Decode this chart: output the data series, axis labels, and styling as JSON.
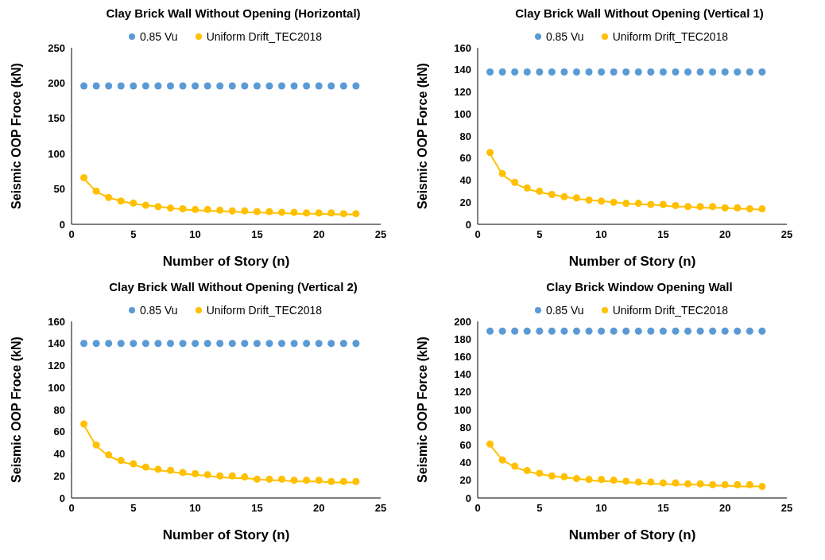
{
  "chart_data": [
    {
      "type": "scatter",
      "title": "Clay Brick Wall Without Opening (Horizontal)",
      "xlabel": "Number of Story (n)",
      "ylabel": "Seismic OOP Froce (kN)",
      "xlim": [
        0,
        25
      ],
      "xticks": [
        0,
        5,
        10,
        15,
        20,
        25
      ],
      "ylim": [
        0,
        250
      ],
      "yticks": [
        0,
        50,
        100,
        150,
        200,
        250
      ],
      "grid": false,
      "legend": "top",
      "marker": "circle",
      "x": [
        1,
        2,
        3,
        4,
        5,
        6,
        7,
        8,
        9,
        10,
        11,
        12,
        13,
        14,
        15,
        16,
        17,
        18,
        19,
        20,
        21,
        22,
        23
      ],
      "series": [
        {
          "name": "0.85 Vu",
          "color": "#5b9bd5",
          "values": [
            196,
            196,
            196,
            196,
            196,
            196,
            196,
            196,
            196,
            196,
            196,
            196,
            196,
            196,
            196,
            196,
            196,
            196,
            196,
            196,
            196,
            196,
            196
          ]
        },
        {
          "name": "Uniform Drift_TEC2018",
          "color": "#ffc000",
          "values": [
            66,
            47,
            38,
            33,
            30,
            27,
            25,
            23,
            22,
            21,
            21,
            20,
            19,
            19,
            18,
            18,
            17,
            17,
            16,
            16,
            16,
            15,
            15
          ]
        },
        {
          "type": "line",
          "marker": "none",
          "color": "#ffc000",
          "values": [
            65,
            46,
            38,
            33,
            29,
            27,
            25,
            23,
            21,
            20,
            19,
            19,
            18,
            17,
            17,
            16,
            16,
            15,
            15,
            15,
            14,
            14,
            14
          ]
        }
      ]
    },
    {
      "type": "scatter",
      "title": "Clay Brick Wall Without Opening (Vertical 1)",
      "xlabel": "Number of Story (n)",
      "ylabel": "Seismic OOP Force (kN)",
      "xlim": [
        0,
        25
      ],
      "xticks": [
        0,
        5,
        10,
        15,
        20,
        25
      ],
      "ylim": [
        0,
        160
      ],
      "yticks": [
        0,
        20,
        40,
        60,
        80,
        100,
        120,
        140,
        160
      ],
      "grid": false,
      "legend": "top",
      "marker": "circle",
      "x": [
        1,
        2,
        3,
        4,
        5,
        6,
        7,
        8,
        9,
        10,
        11,
        12,
        13,
        14,
        15,
        16,
        17,
        18,
        19,
        20,
        21,
        22,
        23
      ],
      "series": [
        {
          "name": "0.85 Vu",
          "color": "#5b9bd5",
          "values": [
            138,
            138,
            138,
            138,
            138,
            138,
            138,
            138,
            138,
            138,
            138,
            138,
            138,
            138,
            138,
            138,
            138,
            138,
            138,
            138,
            138,
            138,
            138
          ]
        },
        {
          "name": "Uniform Drift_TEC2018",
          "color": "#ffc000",
          "values": [
            65,
            46,
            38,
            33,
            30,
            27,
            25,
            24,
            22,
            21,
            20,
            19,
            19,
            18,
            18,
            17,
            16,
            16,
            16,
            15,
            15,
            14,
            14
          ]
        },
        {
          "type": "line",
          "marker": "none",
          "color": "#ffc000",
          "values": [
            64,
            45,
            37,
            32,
            29,
            27,
            25,
            23,
            22,
            21,
            20,
            19,
            18,
            18,
            17,
            16,
            16,
            15,
            15,
            15,
            14,
            14,
            13
          ]
        }
      ]
    },
    {
      "type": "scatter",
      "title": "Clay Brick Wall Without Opening (Vertical 2)",
      "xlabel": "Number of Story (n)",
      "ylabel": "Seismic OOP Froce (kN)",
      "xlim": [
        0,
        25
      ],
      "xticks": [
        0,
        5,
        10,
        15,
        20,
        25
      ],
      "ylim": [
        0,
        160
      ],
      "yticks": [
        0,
        20,
        40,
        60,
        80,
        100,
        120,
        140,
        160
      ],
      "grid": false,
      "legend": "top",
      "marker": "circle",
      "x": [
        1,
        2,
        3,
        4,
        5,
        6,
        7,
        8,
        9,
        10,
        11,
        12,
        13,
        14,
        15,
        16,
        17,
        18,
        19,
        20,
        21,
        22,
        23
      ],
      "series": [
        {
          "name": "0.85 Vu",
          "color": "#5b9bd5",
          "values": [
            140,
            140,
            140,
            140,
            140,
            140,
            140,
            140,
            140,
            140,
            140,
            140,
            140,
            140,
            140,
            140,
            140,
            140,
            140,
            140,
            140,
            140,
            140
          ]
        },
        {
          "name": "Uniform Drift_TEC2018",
          "color": "#ffc000",
          "values": [
            67,
            48,
            39,
            34,
            31,
            28,
            26,
            25,
            23,
            22,
            21,
            20,
            20,
            19,
            17,
            17,
            17,
            16,
            16,
            16,
            15,
            15,
            15
          ]
        },
        {
          "type": "line",
          "marker": "none",
          "color": "#ffc000",
          "values": [
            66,
            47,
            38,
            33,
            30,
            27,
            25,
            24,
            22,
            21,
            20,
            19,
            18,
            18,
            17,
            16,
            16,
            15,
            15,
            15,
            14,
            14,
            14
          ]
        }
      ]
    },
    {
      "type": "scatter",
      "title": "Clay Brick Window Opening Wall",
      "xlabel": "Number of Story (n)",
      "ylabel": "Seismic OOP Force (kN)",
      "xlim": [
        0,
        25
      ],
      "xticks": [
        0,
        5,
        10,
        15,
        20,
        25
      ],
      "ylim": [
        0,
        200
      ],
      "yticks": [
        0,
        20,
        40,
        60,
        80,
        100,
        120,
        140,
        160,
        180,
        200
      ],
      "grid": false,
      "legend": "top",
      "marker": "circle",
      "x": [
        1,
        2,
        3,
        4,
        5,
        6,
        7,
        8,
        9,
        10,
        11,
        12,
        13,
        14,
        15,
        16,
        17,
        18,
        19,
        20,
        21,
        22,
        23
      ],
      "series": [
        {
          "name": "0.85 Vu",
          "color": "#5b9bd5",
          "values": [
            189,
            189,
            189,
            189,
            189,
            189,
            189,
            189,
            189,
            189,
            189,
            189,
            189,
            189,
            189,
            189,
            189,
            189,
            189,
            189,
            189,
            189,
            189
          ]
        },
        {
          "name": "Uniform Drift_TEC2018",
          "color": "#ffc000",
          "values": [
            61,
            43,
            36,
            31,
            28,
            25,
            24,
            22,
            21,
            21,
            20,
            19,
            18,
            18,
            17,
            17,
            16,
            16,
            15,
            15,
            15,
            15,
            13
          ]
        },
        {
          "type": "line",
          "marker": "none",
          "color": "#ffc000",
          "values": [
            60,
            43,
            35,
            30,
            27,
            25,
            23,
            22,
            20,
            19,
            19,
            18,
            17,
            16,
            16,
            15,
            15,
            15,
            14,
            14,
            13,
            13,
            13
          ]
        }
      ]
    }
  ]
}
